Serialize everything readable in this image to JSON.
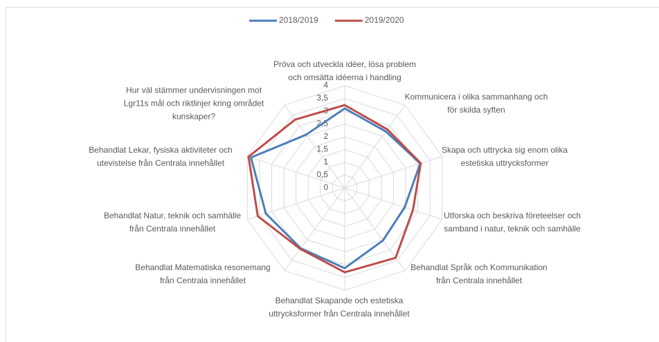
{
  "chart_data": {
    "type": "radar",
    "categories": [
      "Pröva och utveckla idéer, lösa problem\noch omsätta idéerna i handling",
      "Kommunicera i olika sammanhang och\nför skilda syften",
      "Skapa och uttrycka sig enom olika\nestetiska uttrycksformer",
      "Utforska och beskriva företeelser och\nsamband i natur, teknik och samhälle",
      "Behandlat Språk och Kommunikation\nfrån Centrala innehållet",
      "Behandlat Skapande och estetiska\nuttrycksformer från Centrala innehållet",
      "Behandlat Matematiska resonemang\nfrån Centrala innehållet",
      "Behandlat Natur, teknik och samhälle\nfrån Centrala innehållet",
      "Behandlat Lekar, fysiska aktiviteter och\nutevistelse från Centrala innehållet",
      "Hur väl stämmer undervisningen mot\nLgr11s mål och riktlinjer kring området\nkunskaper?"
    ],
    "series": [
      {
        "name": "2018/2019",
        "color": "#4a7ebb",
        "values": [
          3.11,
          2.73,
          3.1,
          2.46,
          2.54,
          3.14,
          2.92,
          3.24,
          3.85,
          2.57
        ]
      },
      {
        "name": "2019/2020",
        "color": "#be4b48",
        "values": [
          3.24,
          2.83,
          3.12,
          2.8,
          3.38,
          3.3,
          2.95,
          3.57,
          3.95,
          3.3
        ]
      }
    ],
    "ylim": [
      0,
      4
    ],
    "yticks": [
      0,
      {
        "value": 0.5,
        "label": "0,5"
      },
      1,
      {
        "value": 1.5,
        "label": "1,5"
      },
      2,
      {
        "value": 2.5,
        "label": "2,5"
      },
      3,
      {
        "value": 3.5,
        "label": "3,5"
      },
      4
    ],
    "grid": true,
    "legend": "top"
  }
}
